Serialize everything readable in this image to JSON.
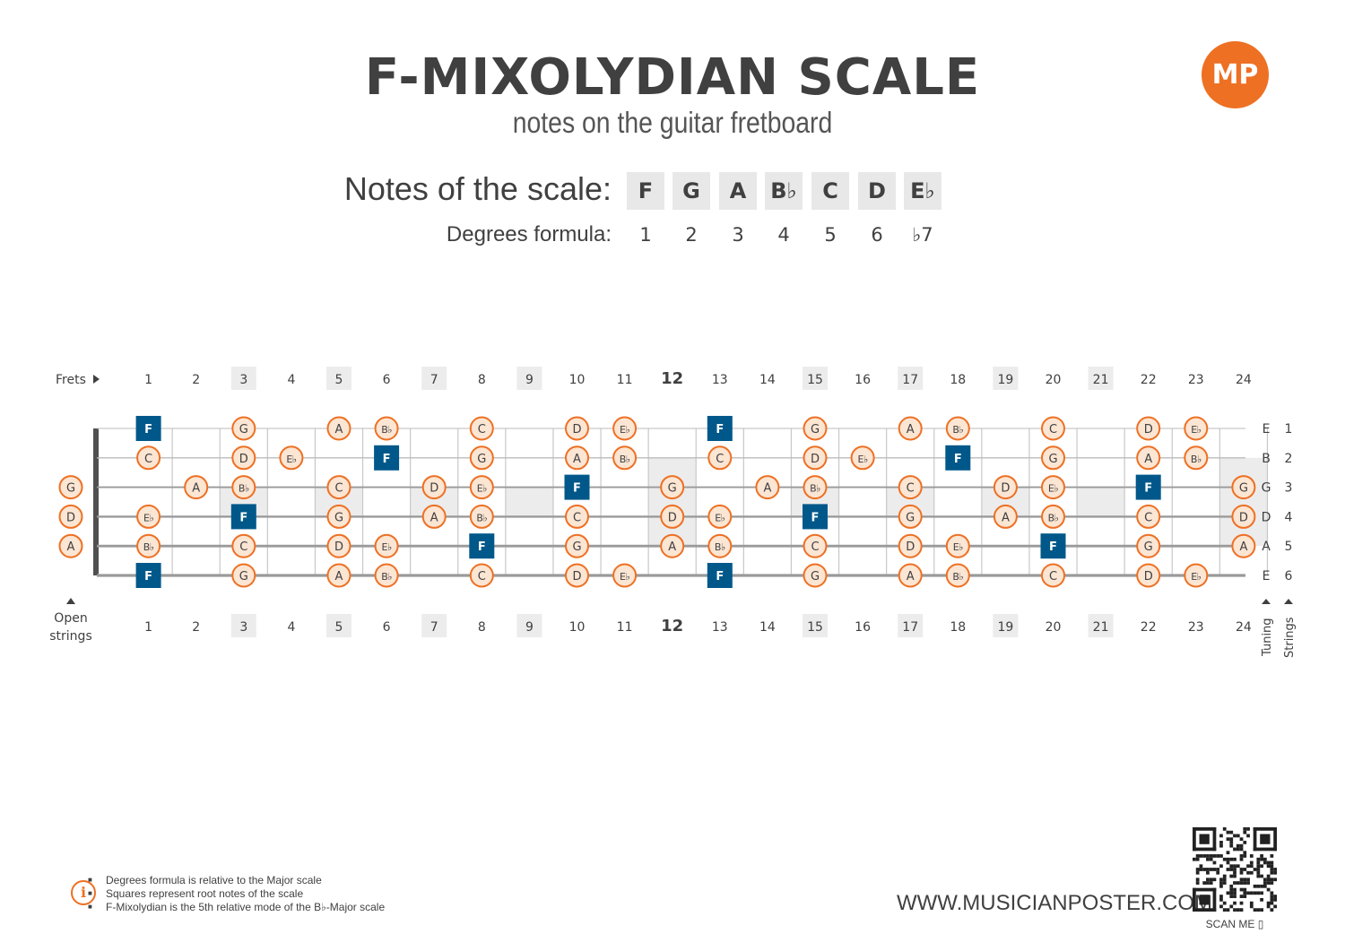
{
  "header": {
    "title": "F-MIXOLYDIAN SCALE",
    "subtitle": "notes on the guitar fretboard",
    "logo_text": "MP"
  },
  "scale": {
    "notes_label": "Notes of the scale:",
    "degrees_label": "Degrees formula:",
    "notes": [
      "F",
      "G",
      "A",
      "B♭",
      "C",
      "D",
      "E♭"
    ],
    "degrees": [
      "1",
      "2",
      "3",
      "4",
      "5",
      "6",
      "♭7"
    ]
  },
  "chart_data": {
    "type": "fretboard",
    "frets_label": "Frets",
    "open_strings_label": [
      "Open",
      "strings"
    ],
    "tuning_label": "Tuning",
    "strings_label": "Strings",
    "fret_count": 24,
    "bold_fret": 12,
    "marker_frets": [
      3,
      5,
      7,
      9,
      15,
      17,
      19,
      21
    ],
    "highlight_frets": [
      3,
      5,
      7,
      9,
      12,
      15,
      17,
      19,
      21,
      24
    ],
    "strings": [
      {
        "number": "1",
        "tuning": "E",
        "notes": [
          {
            "fret": 1,
            "note": "F",
            "root": true
          },
          {
            "fret": 3,
            "note": "G"
          },
          {
            "fret": 5,
            "note": "A"
          },
          {
            "fret": 6,
            "note": "B♭"
          },
          {
            "fret": 8,
            "note": "C"
          },
          {
            "fret": 10,
            "note": "D"
          },
          {
            "fret": 11,
            "note": "E♭"
          },
          {
            "fret": 13,
            "note": "F",
            "root": true
          },
          {
            "fret": 15,
            "note": "G"
          },
          {
            "fret": 17,
            "note": "A"
          },
          {
            "fret": 18,
            "note": "B♭"
          },
          {
            "fret": 20,
            "note": "C"
          },
          {
            "fret": 22,
            "note": "D"
          },
          {
            "fret": 23,
            "note": "E♭"
          }
        ]
      },
      {
        "number": "2",
        "tuning": "B",
        "notes": [
          {
            "fret": 1,
            "note": "C"
          },
          {
            "fret": 3,
            "note": "D"
          },
          {
            "fret": 4,
            "note": "E♭"
          },
          {
            "fret": 6,
            "note": "F",
            "root": true
          },
          {
            "fret": 8,
            "note": "G"
          },
          {
            "fret": 10,
            "note": "A"
          },
          {
            "fret": 11,
            "note": "B♭"
          },
          {
            "fret": 13,
            "note": "C"
          },
          {
            "fret": 15,
            "note": "D"
          },
          {
            "fret": 16,
            "note": "E♭"
          },
          {
            "fret": 18,
            "note": "F",
            "root": true
          },
          {
            "fret": 20,
            "note": "G"
          },
          {
            "fret": 22,
            "note": "A"
          },
          {
            "fret": 23,
            "note": "B♭"
          }
        ]
      },
      {
        "number": "3",
        "tuning": "G",
        "notes": [
          {
            "fret": 0,
            "note": "G"
          },
          {
            "fret": 2,
            "note": "A"
          },
          {
            "fret": 3,
            "note": "B♭"
          },
          {
            "fret": 5,
            "note": "C"
          },
          {
            "fret": 7,
            "note": "D"
          },
          {
            "fret": 8,
            "note": "E♭"
          },
          {
            "fret": 10,
            "note": "F",
            "root": true
          },
          {
            "fret": 12,
            "note": "G"
          },
          {
            "fret": 14,
            "note": "A"
          },
          {
            "fret": 15,
            "note": "B♭"
          },
          {
            "fret": 17,
            "note": "C"
          },
          {
            "fret": 19,
            "note": "D"
          },
          {
            "fret": 20,
            "note": "E♭"
          },
          {
            "fret": 22,
            "note": "F",
            "root": true
          },
          {
            "fret": 24,
            "note": "G"
          }
        ]
      },
      {
        "number": "4",
        "tuning": "D",
        "notes": [
          {
            "fret": 0,
            "note": "D"
          },
          {
            "fret": 1,
            "note": "E♭"
          },
          {
            "fret": 3,
            "note": "F",
            "root": true
          },
          {
            "fret": 5,
            "note": "G"
          },
          {
            "fret": 7,
            "note": "A"
          },
          {
            "fret": 8,
            "note": "B♭"
          },
          {
            "fret": 10,
            "note": "C"
          },
          {
            "fret": 12,
            "note": "D"
          },
          {
            "fret": 13,
            "note": "E♭"
          },
          {
            "fret": 15,
            "note": "F",
            "root": true
          },
          {
            "fret": 17,
            "note": "G"
          },
          {
            "fret": 19,
            "note": "A"
          },
          {
            "fret": 20,
            "note": "B♭"
          },
          {
            "fret": 22,
            "note": "C"
          },
          {
            "fret": 24,
            "note": "D"
          }
        ]
      },
      {
        "number": "5",
        "tuning": "A",
        "notes": [
          {
            "fret": 0,
            "note": "A"
          },
          {
            "fret": 1,
            "note": "B♭"
          },
          {
            "fret": 3,
            "note": "C"
          },
          {
            "fret": 5,
            "note": "D"
          },
          {
            "fret": 6,
            "note": "E♭"
          },
          {
            "fret": 8,
            "note": "F",
            "root": true
          },
          {
            "fret": 10,
            "note": "G"
          },
          {
            "fret": 12,
            "note": "A"
          },
          {
            "fret": 13,
            "note": "B♭"
          },
          {
            "fret": 15,
            "note": "C"
          },
          {
            "fret": 17,
            "note": "D"
          },
          {
            "fret": 18,
            "note": "E♭"
          },
          {
            "fret": 20,
            "note": "F",
            "root": true
          },
          {
            "fret": 22,
            "note": "G"
          },
          {
            "fret": 24,
            "note": "A"
          }
        ]
      },
      {
        "number": "6",
        "tuning": "E",
        "notes": [
          {
            "fret": 1,
            "note": "F",
            "root": true
          },
          {
            "fret": 3,
            "note": "G"
          },
          {
            "fret": 5,
            "note": "A"
          },
          {
            "fret": 6,
            "note": "B♭"
          },
          {
            "fret": 8,
            "note": "C"
          },
          {
            "fret": 10,
            "note": "D"
          },
          {
            "fret": 11,
            "note": "E♭"
          },
          {
            "fret": 13,
            "note": "F",
            "root": true
          },
          {
            "fret": 15,
            "note": "G"
          },
          {
            "fret": 17,
            "note": "A"
          },
          {
            "fret": 18,
            "note": "B♭"
          },
          {
            "fret": 20,
            "note": "C"
          },
          {
            "fret": 22,
            "note": "D"
          },
          {
            "fret": 23,
            "note": "E♭"
          }
        ]
      }
    ]
  },
  "footnotes": [
    "Degrees formula is relative to the Major scale",
    "Squares represent root notes of the scale",
    "F-Mixolydian is the 5th relative mode of the B♭-Major scale"
  ],
  "footer": {
    "website": "WWW.MUSICIANPOSTER.COM",
    "scan_label": "SCAN ME"
  },
  "colors": {
    "accent": "#ee7023",
    "note_fill": "#fbe5d3",
    "root_fill": "#00588a",
    "marker_fill": "#ececec",
    "text": "#404040"
  }
}
